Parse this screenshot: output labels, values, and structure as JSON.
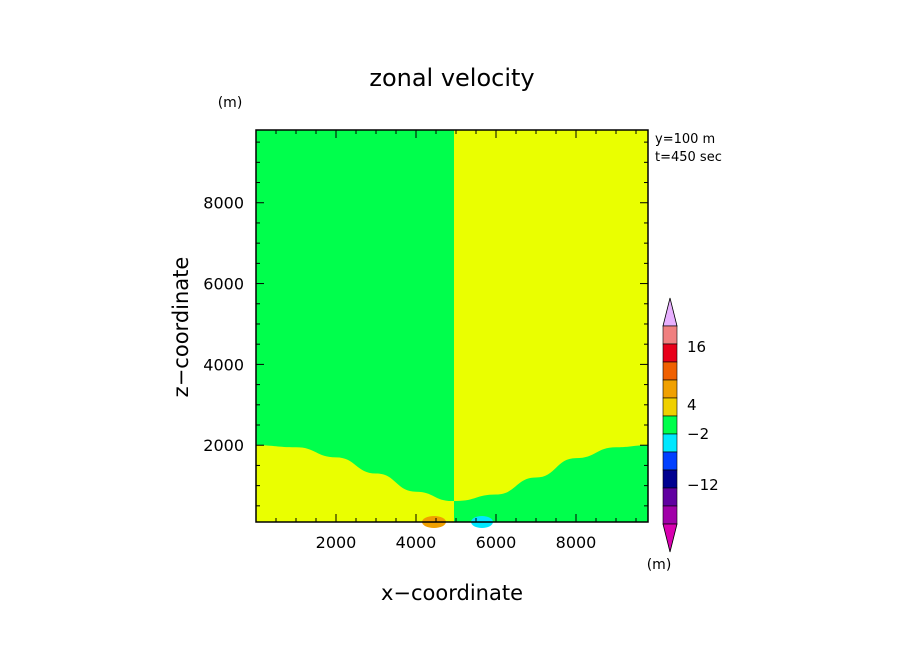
{
  "chart_data": {
    "type": "heatmap",
    "title": "zonal velocity",
    "xlabel": "x−coordinate",
    "ylabel": "z−coordinate",
    "x_unit": "(m)",
    "z_unit": "(m)",
    "annotations": [
      "y=100  m",
      "t=450 sec"
    ],
    "xlim": [
      0,
      9800
    ],
    "zlim": [
      100,
      9800
    ],
    "x_ticks": [
      "2000",
      "4000",
      "6000",
      "8000"
    ],
    "z_ticks": [
      "2000",
      "4000",
      "6000",
      "8000"
    ],
    "x_tick_values": [
      2000,
      4000,
      6000,
      8000
    ],
    "z_tick_values": [
      2000,
      4000,
      6000,
      8000
    ],
    "regions": [
      {
        "name": "upper-left",
        "color": "#00ff4c",
        "range": "-2 to 0"
      },
      {
        "name": "upper-right",
        "color": "#eaff00",
        "range": "0 to 4"
      },
      {
        "name": "lower-left",
        "color": "#eaff00",
        "range": "0 to 4"
      },
      {
        "name": "lower-right",
        "color": "#00ff4c",
        "range": "-2 to 0"
      }
    ],
    "interface_left": [
      [
        0,
        2000
      ],
      [
        1000,
        1950
      ],
      [
        2000,
        1700
      ],
      [
        3000,
        1300
      ],
      [
        4000,
        850
      ],
      [
        4900,
        620
      ]
    ],
    "interface_right": [
      [
        5000,
        620
      ],
      [
        6000,
        780
      ],
      [
        7000,
        1200
      ],
      [
        8000,
        1680
      ],
      [
        9000,
        1950
      ],
      [
        9800,
        2000
      ]
    ],
    "split_x": 4950,
    "colorbar": {
      "colors": [
        "#e8b0ff",
        "#f08080",
        "#e8001a",
        "#f06000",
        "#f0a000",
        "#f0d000",
        "#00ff4c",
        "#00e8ff",
        "#0040ff",
        "#000090",
        "#6000a0",
        "#a000a8",
        "#d800b0"
      ],
      "labels": [
        "16",
        "4",
        "−2",
        "−12"
      ],
      "unit": "(m)"
    },
    "colors": {
      "green": "#00ff4c",
      "yellow": "#eaff00",
      "orange": "#f0a000",
      "cyan": "#00e8ff"
    }
  }
}
